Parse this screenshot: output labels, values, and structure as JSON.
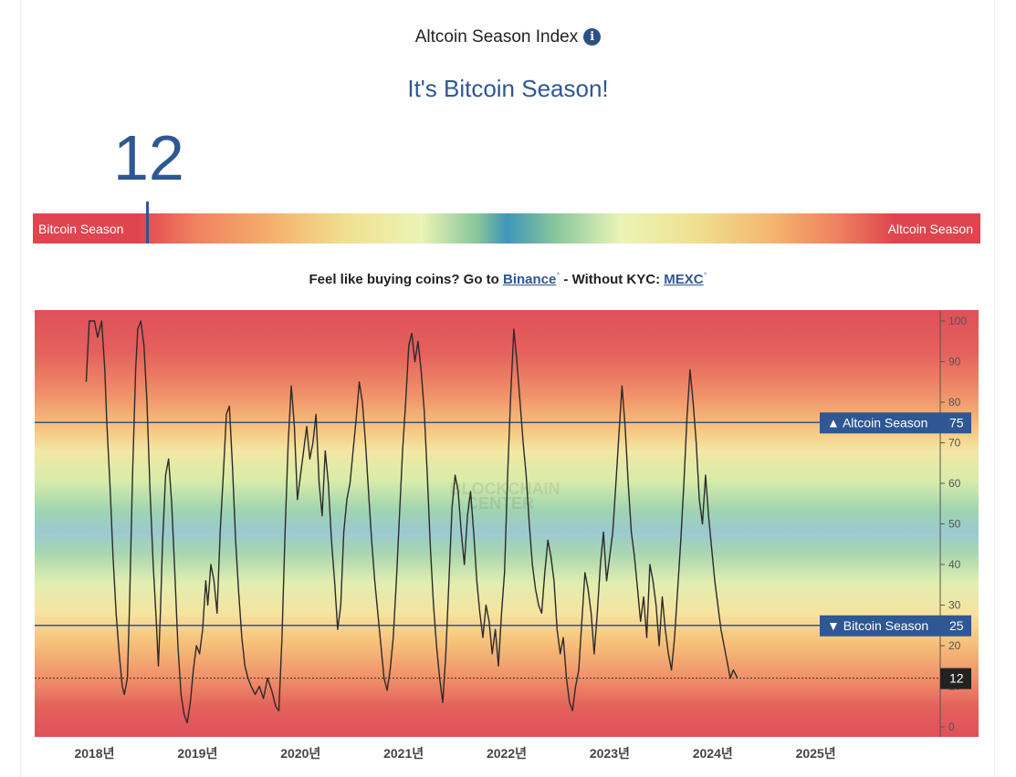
{
  "header": {
    "title": "Altcoin Season Index",
    "info_icon": "info-icon",
    "status": "It's Bitcoin Season!",
    "current_value": "12"
  },
  "gauge": {
    "left_label": "Bitcoin Season",
    "right_label": "Altcoin Season",
    "value": 12
  },
  "promo": {
    "text_before": "Feel like buying coins? Go to ",
    "binance_link": "Binance",
    "asterisk": "*",
    "text_middle": " - Without KYC: ",
    "mexc_link": "MEXC"
  },
  "watermark": [
    "BLOCKCHAIN",
    "CENTER"
  ],
  "chart_data": {
    "type": "line",
    "title": "",
    "xlabel": "",
    "ylabel": "",
    "ylim": [
      0,
      100
    ],
    "y_ticks": [
      "0",
      "10",
      "20",
      "30",
      "40",
      "50",
      "60",
      "70",
      "80",
      "90",
      "100"
    ],
    "x_ticks": [
      "2018년",
      "2019년",
      "2020년",
      "2021년",
      "2022년",
      "2023년",
      "2024년",
      "2025년"
    ],
    "x_tick_years": [
      2018,
      2019,
      2020,
      2021,
      2022,
      2023,
      2024,
      2025
    ],
    "x_range": [
      2017.42,
      2026.58
    ],
    "reference_lines": [
      {
        "label": "Altcoin Season",
        "value": 75,
        "marker": "▲"
      },
      {
        "label": "Bitcoin Season",
        "value": 25,
        "marker": "▼"
      }
    ],
    "current": {
      "label": "12",
      "value": 12
    },
    "series": [
      {
        "points": [
          [
            2017.92,
            85
          ],
          [
            2017.95,
            100
          ],
          [
            2018.0,
            100
          ],
          [
            2018.03,
            96
          ],
          [
            2018.07,
            100
          ],
          [
            2018.1,
            88
          ],
          [
            2018.12,
            75
          ],
          [
            2018.15,
            60
          ],
          [
            2018.18,
            42
          ],
          [
            2018.21,
            28
          ],
          [
            2018.24,
            18
          ],
          [
            2018.27,
            10
          ],
          [
            2018.29,
            8
          ],
          [
            2018.32,
            12
          ],
          [
            2018.34,
            30
          ],
          [
            2018.37,
            62
          ],
          [
            2018.4,
            88
          ],
          [
            2018.42,
            98
          ],
          [
            2018.45,
            100
          ],
          [
            2018.48,
            94
          ],
          [
            2018.51,
            80
          ],
          [
            2018.54,
            58
          ],
          [
            2018.57,
            40
          ],
          [
            2018.6,
            26
          ],
          [
            2018.62,
            15
          ],
          [
            2018.64,
            28
          ],
          [
            2018.66,
            45
          ],
          [
            2018.69,
            62
          ],
          [
            2018.72,
            66
          ],
          [
            2018.75,
            55
          ],
          [
            2018.78,
            38
          ],
          [
            2018.81,
            20
          ],
          [
            2018.84,
            8
          ],
          [
            2018.87,
            3
          ],
          [
            2018.9,
            1
          ],
          [
            2018.93,
            6
          ],
          [
            2018.96,
            14
          ],
          [
            2018.99,
            20
          ],
          [
            2019.02,
            18
          ],
          [
            2019.05,
            24
          ],
          [
            2019.08,
            36
          ],
          [
            2019.1,
            30
          ],
          [
            2019.13,
            40
          ],
          [
            2019.16,
            36
          ],
          [
            2019.19,
            28
          ],
          [
            2019.22,
            48
          ],
          [
            2019.25,
            62
          ],
          [
            2019.28,
            77
          ],
          [
            2019.31,
            79
          ],
          [
            2019.34,
            64
          ],
          [
            2019.37,
            46
          ],
          [
            2019.4,
            33
          ],
          [
            2019.43,
            22
          ],
          [
            2019.46,
            15
          ],
          [
            2019.49,
            12
          ],
          [
            2019.52,
            10
          ],
          [
            2019.56,
            8
          ],
          [
            2019.6,
            10
          ],
          [
            2019.64,
            7
          ],
          [
            2019.68,
            12
          ],
          [
            2019.72,
            9
          ],
          [
            2019.76,
            5
          ],
          [
            2019.79,
            4
          ],
          [
            2019.82,
            22
          ],
          [
            2019.85,
            48
          ],
          [
            2019.88,
            70
          ],
          [
            2019.91,
            84
          ],
          [
            2019.94,
            74
          ],
          [
            2019.97,
            56
          ],
          [
            2020.0,
            62
          ],
          [
            2020.03,
            68
          ],
          [
            2020.06,
            74
          ],
          [
            2020.09,
            66
          ],
          [
            2020.12,
            70
          ],
          [
            2020.15,
            77
          ],
          [
            2020.18,
            60
          ],
          [
            2020.21,
            52
          ],
          [
            2020.24,
            68
          ],
          [
            2020.27,
            60
          ],
          [
            2020.3,
            46
          ],
          [
            2020.33,
            36
          ],
          [
            2020.36,
            24
          ],
          [
            2020.39,
            30
          ],
          [
            2020.42,
            48
          ],
          [
            2020.45,
            56
          ],
          [
            2020.48,
            60
          ],
          [
            2020.51,
            68
          ],
          [
            2020.54,
            76
          ],
          [
            2020.57,
            85
          ],
          [
            2020.6,
            80
          ],
          [
            2020.63,
            70
          ],
          [
            2020.66,
            58
          ],
          [
            2020.69,
            46
          ],
          [
            2020.72,
            36
          ],
          [
            2020.75,
            28
          ],
          [
            2020.78,
            20
          ],
          [
            2020.81,
            12
          ],
          [
            2020.84,
            9
          ],
          [
            2020.87,
            14
          ],
          [
            2020.9,
            22
          ],
          [
            2020.93,
            36
          ],
          [
            2020.96,
            52
          ],
          [
            2020.99,
            68
          ],
          [
            2021.02,
            80
          ],
          [
            2021.05,
            94
          ],
          [
            2021.08,
            97
          ],
          [
            2021.11,
            90
          ],
          [
            2021.14,
            95
          ],
          [
            2021.17,
            88
          ],
          [
            2021.2,
            78
          ],
          [
            2021.23,
            62
          ],
          [
            2021.26,
            44
          ],
          [
            2021.29,
            30
          ],
          [
            2021.32,
            20
          ],
          [
            2021.35,
            12
          ],
          [
            2021.38,
            6
          ],
          [
            2021.41,
            18
          ],
          [
            2021.44,
            36
          ],
          [
            2021.47,
            54
          ],
          [
            2021.5,
            62
          ],
          [
            2021.53,
            58
          ],
          [
            2021.56,
            48
          ],
          [
            2021.59,
            40
          ],
          [
            2021.62,
            52
          ],
          [
            2021.65,
            58
          ],
          [
            2021.68,
            48
          ],
          [
            2021.71,
            36
          ],
          [
            2021.74,
            28
          ],
          [
            2021.77,
            22
          ],
          [
            2021.8,
            30
          ],
          [
            2021.83,
            26
          ],
          [
            2021.86,
            18
          ],
          [
            2021.89,
            24
          ],
          [
            2021.92,
            15
          ],
          [
            2021.95,
            28
          ],
          [
            2021.98,
            38
          ],
          [
            2022.01,
            62
          ],
          [
            2022.04,
            82
          ],
          [
            2022.07,
            98
          ],
          [
            2022.1,
            90
          ],
          [
            2022.13,
            80
          ],
          [
            2022.16,
            70
          ],
          [
            2022.19,
            62
          ],
          [
            2022.22,
            50
          ],
          [
            2022.25,
            40
          ],
          [
            2022.28,
            34
          ],
          [
            2022.31,
            30
          ],
          [
            2022.34,
            28
          ],
          [
            2022.37,
            38
          ],
          [
            2022.4,
            46
          ],
          [
            2022.43,
            42
          ],
          [
            2022.46,
            36
          ],
          [
            2022.49,
            24
          ],
          [
            2022.52,
            18
          ],
          [
            2022.55,
            22
          ],
          [
            2022.58,
            12
          ],
          [
            2022.61,
            6
          ],
          [
            2022.64,
            4
          ],
          [
            2022.67,
            10
          ],
          [
            2022.7,
            14
          ],
          [
            2022.73,
            26
          ],
          [
            2022.76,
            38
          ],
          [
            2022.79,
            34
          ],
          [
            2022.82,
            28
          ],
          [
            2022.85,
            18
          ],
          [
            2022.88,
            28
          ],
          [
            2022.91,
            40
          ],
          [
            2022.94,
            48
          ],
          [
            2022.97,
            36
          ],
          [
            2023.0,
            42
          ],
          [
            2023.03,
            48
          ],
          [
            2023.06,
            60
          ],
          [
            2023.09,
            72
          ],
          [
            2023.12,
            84
          ],
          [
            2023.15,
            74
          ],
          [
            2023.18,
            60
          ],
          [
            2023.21,
            48
          ],
          [
            2023.24,
            42
          ],
          [
            2023.27,
            34
          ],
          [
            2023.3,
            26
          ],
          [
            2023.33,
            32
          ],
          [
            2023.36,
            22
          ],
          [
            2023.39,
            40
          ],
          [
            2023.42,
            36
          ],
          [
            2023.45,
            30
          ],
          [
            2023.48,
            20
          ],
          [
            2023.51,
            32
          ],
          [
            2023.54,
            24
          ],
          [
            2023.57,
            18
          ],
          [
            2023.6,
            14
          ],
          [
            2023.63,
            22
          ],
          [
            2023.66,
            34
          ],
          [
            2023.69,
            46
          ],
          [
            2023.72,
            60
          ],
          [
            2023.75,
            76
          ],
          [
            2023.78,
            88
          ],
          [
            2023.81,
            80
          ],
          [
            2023.84,
            70
          ],
          [
            2023.87,
            56
          ],
          [
            2023.9,
            50
          ],
          [
            2023.93,
            62
          ],
          [
            2023.96,
            52
          ],
          [
            2023.99,
            44
          ],
          [
            2024.02,
            36
          ],
          [
            2024.05,
            30
          ],
          [
            2024.08,
            24
          ],
          [
            2024.11,
            20
          ],
          [
            2024.14,
            16
          ],
          [
            2024.17,
            12
          ],
          [
            2024.2,
            14
          ],
          [
            2024.24,
            12
          ]
        ]
      }
    ]
  }
}
